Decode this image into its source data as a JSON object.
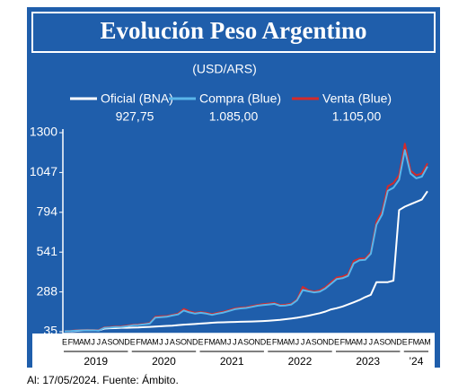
{
  "chart_data": {
    "type": "line",
    "title": "Evolución Peso Argentino",
    "subtitle": "(USD/ARS)",
    "categories": [
      "E",
      "F",
      "M",
      "A",
      "M",
      "J",
      "J",
      "A",
      "S",
      "O",
      "N",
      "D",
      "E",
      "F",
      "M",
      "A",
      "M",
      "J",
      "J",
      "A",
      "S",
      "O",
      "N",
      "D",
      "E",
      "F",
      "M",
      "A",
      "M",
      "J",
      "J",
      "A",
      "S",
      "O",
      "N",
      "D",
      "E",
      "F",
      "M",
      "A",
      "M",
      "J",
      "J",
      "A",
      "S",
      "O",
      "N",
      "D",
      "E",
      "F",
      "M",
      "A",
      "M",
      "J",
      "J",
      "A",
      "S",
      "O",
      "N",
      "D",
      "E",
      "F",
      "M",
      "A",
      "M"
    ],
    "years": [
      "2019",
      "2020",
      "2021",
      "2022",
      "2023",
      "’24"
    ],
    "series": [
      {
        "name": "Oficial (BNA)",
        "latest": "927,75",
        "color": "#ffffff",
        "values": [
          38,
          38,
          40,
          43,
          45,
          44,
          43,
          55,
          57,
          58,
          60,
          60,
          61,
          62,
          64,
          66,
          68,
          70,
          72,
          74,
          77,
          80,
          82,
          84,
          87,
          89,
          92,
          94,
          95,
          96,
          97,
          98,
          99,
          100,
          101,
          103,
          105,
          108,
          111,
          115,
          119,
          124,
          130,
          137,
          145,
          153,
          163,
          177,
          185,
          195,
          208,
          222,
          237,
          255,
          270,
          350,
          350,
          350,
          360,
          808,
          830,
          845,
          860,
          875,
          927.75
        ]
      },
      {
        "name": "Venta (Blue)",
        "latest": "1.105,00",
        "color": "#d42a2a",
        "values": [
          39,
          40,
          44,
          46,
          47,
          46,
          45,
          63,
          65,
          68,
          69,
          74,
          79,
          81,
          85,
          90,
          130,
          133,
          135,
          142,
          150,
          180,
          165,
          155,
          160,
          155,
          147,
          155,
          162,
          172,
          183,
          188,
          190,
          198,
          205,
          210,
          214,
          218,
          205,
          207,
          213,
          240,
          320,
          298,
          290,
          298,
          318,
          350,
          380,
          385,
          400,
          485,
          500,
          500,
          540,
          735,
          800,
          960,
          980,
          1030,
          1230,
          1060,
          1030,
          1040,
          1105
        ]
      },
      {
        "name": "Compra (Blue)",
        "latest": "1.085,00",
        "color": "#5ab6ea",
        "values": [
          38,
          39,
          42,
          44,
          45,
          44,
          43,
          60,
          62,
          65,
          66,
          70,
          76,
          78,
          82,
          87,
          125,
          128,
          130,
          138,
          145,
          170,
          158,
          150,
          155,
          150,
          142,
          150,
          157,
          167,
          178,
          183,
          186,
          193,
          200,
          205,
          208,
          212,
          200,
          202,
          208,
          235,
          300,
          292,
          285,
          290,
          310,
          340,
          370,
          375,
          390,
          470,
          490,
          492,
          530,
          715,
          780,
          930,
          950,
          1000,
          1190,
          1040,
          1010,
          1020,
          1085
        ]
      }
    ],
    "ylim": [
      35,
      1300
    ],
    "yticks": [
      35,
      288,
      541,
      794,
      1047,
      1300
    ],
    "footer": "Al: 17/05/2024. Fuente: Ámbito."
  }
}
